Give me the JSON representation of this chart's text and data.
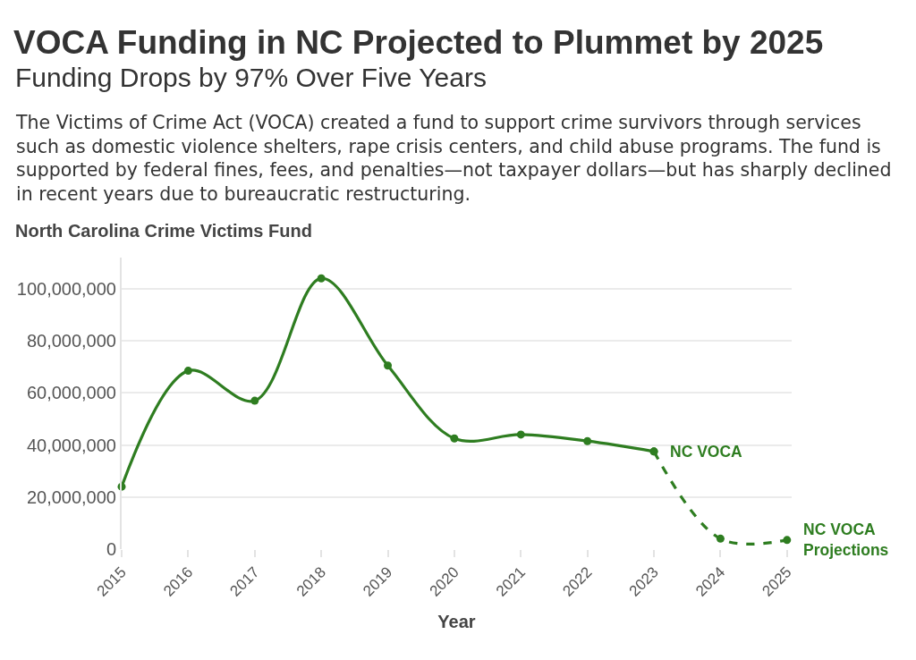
{
  "chart_data": {
    "type": "line",
    "title": "VOCA Funding in NC Projected to Plummet by 2025",
    "subtitle": "Funding Drops by 97% Over Five Years",
    "annotations": [
      "The Victims of Crime Act (VOCA) created a fund to support crime survivors through services such as domestic violence shelters, rape crisis centers, and child abuse programs. The fund is supported by federal fines, fees, and penalties—not taxpayer dollars—but has sharply declined in recent years due to bureaucratic restructuring."
    ],
    "ylabel": "North Carolina Crime Victims Fund",
    "xlabel": "Year",
    "categories": [
      "2015",
      "2016",
      "2017",
      "2018",
      "2019",
      "2020",
      "2021",
      "2022",
      "2023",
      "2024",
      "2025"
    ],
    "series": [
      {
        "name": "NC VOCA",
        "color": "#2e7d20",
        "line_style": "solid",
        "values": [
          24000000,
          68500000,
          57000000,
          104000000,
          70500000,
          42500000,
          44000000,
          41500000,
          37500000,
          null,
          null
        ]
      },
      {
        "name": "NC VOCA Projections",
        "color": "#2e7d20",
        "line_style": "dashed",
        "values": [
          null,
          null,
          null,
          null,
          null,
          null,
          null,
          null,
          37500000,
          4000000,
          3500000
        ]
      }
    ],
    "ylim": [
      0,
      112000000
    ],
    "yticks": [
      0,
      {
        "value": 20000000,
        "label": "20,000,000"
      },
      {
        "value": 40000000,
        "label": "40,000,000"
      },
      {
        "value": 60000000,
        "label": "60,000,000"
      },
      {
        "value": 80000000,
        "label": "80,000,000"
      },
      {
        "value": 100000000,
        "label": "100,000,000"
      }
    ],
    "grid": "y",
    "legend": false,
    "marker": "circle"
  }
}
